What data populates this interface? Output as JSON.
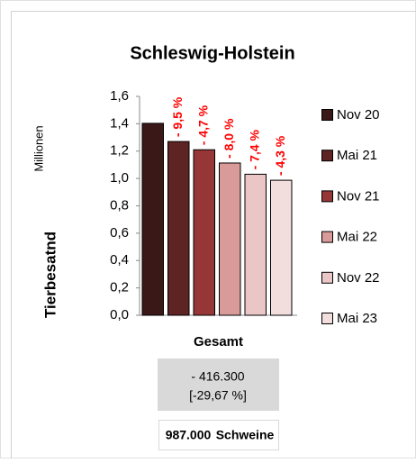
{
  "chart_data": {
    "type": "bar",
    "title": "Schleswig-Holstein",
    "y_label": "Tierbesatnd",
    "y_unit": "Millionen",
    "categories": [
      "Gesamt"
    ],
    "series": [
      {
        "name": "Nov 20",
        "color": "#3b1818",
        "values": [
          1.403
        ]
      },
      {
        "name": "Mai 21",
        "color": "#5e2323",
        "values": [
          1.27
        ],
        "annotation": "- 9,5 %"
      },
      {
        "name": "Nov 21",
        "color": "#963636",
        "values": [
          1.21
        ],
        "annotation": "- 4,7 %"
      },
      {
        "name": "Mai 22",
        "color": "#d99a9a",
        "values": [
          1.113
        ],
        "annotation": "- 8,0 %"
      },
      {
        "name": "Nov 22",
        "color": "#ebc6c6",
        "values": [
          1.031
        ],
        "annotation": "- 7,4 %"
      },
      {
        "name": "Mai 23",
        "color": "#f3dede",
        "values": [
          0.987
        ],
        "annotation": "- 4,3 %"
      }
    ],
    "ylim": [
      0,
      1.6
    ],
    "yticks": [
      {
        "value": 0,
        "label": "0,0"
      },
      {
        "value": 0.2,
        "label": "0,2"
      },
      {
        "value": 0.4,
        "label": "0,4"
      },
      {
        "value": 0.6,
        "label": "0,6"
      },
      {
        "value": 0.8,
        "label": "0,8"
      },
      {
        "value": 1,
        "label": "1,0"
      },
      {
        "value": 1.2,
        "label": "1,2"
      },
      {
        "value": 1.4,
        "label": "1,4"
      },
      {
        "value": 1.6,
        "label": "1,6"
      }
    ],
    "change_box": {
      "line1": "- 416.300",
      "line2": "[-29,67 %]"
    },
    "total_box": {
      "number": "987.000",
      "unit": "Schweine"
    }
  }
}
